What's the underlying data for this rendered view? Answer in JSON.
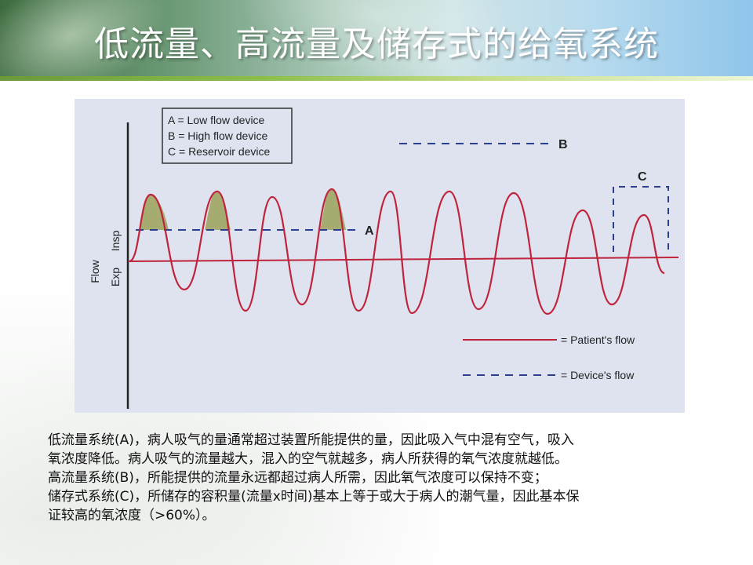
{
  "slide": {
    "title": "低流量、高流量及储存式的给氧系统"
  },
  "figure": {
    "legend_box": {
      "lines": [
        "A = Low flow device",
        "B = High flow device",
        "C = Reservoir device"
      ]
    },
    "labels": {
      "a": "A",
      "b": "B",
      "c": "C",
      "flow": "Flow",
      "insp": "Insp",
      "exp": "Exp"
    },
    "key": {
      "patient": "= Patient's flow",
      "device": "= Device's flow"
    },
    "colors": {
      "patient_flow": "#c0243c",
      "device_flow": "#2b3f8e",
      "shaded_area": "#a6ab6f",
      "background": "#dfe3f0"
    }
  },
  "caption": {
    "lines": [
      "低流量系统(A)，病人吸气的量通常超过装置所能提供的量，因此吸入气中混有空气，吸入",
      "氧浓度降低。病人吸气的流量越大，混入的空气就越多，病人所获得的氧气浓度就越低。",
      "高流量系统(B)，所能提供的流量永远都超过病人所需，因此氧气浓度可以保持不变；",
      "储存式系统(C)，所储存的容积量(流量x时间)基本上等于或大于病人的潮气量，因此基本保",
      "证较高的氧浓度（>60%）。"
    ]
  }
}
